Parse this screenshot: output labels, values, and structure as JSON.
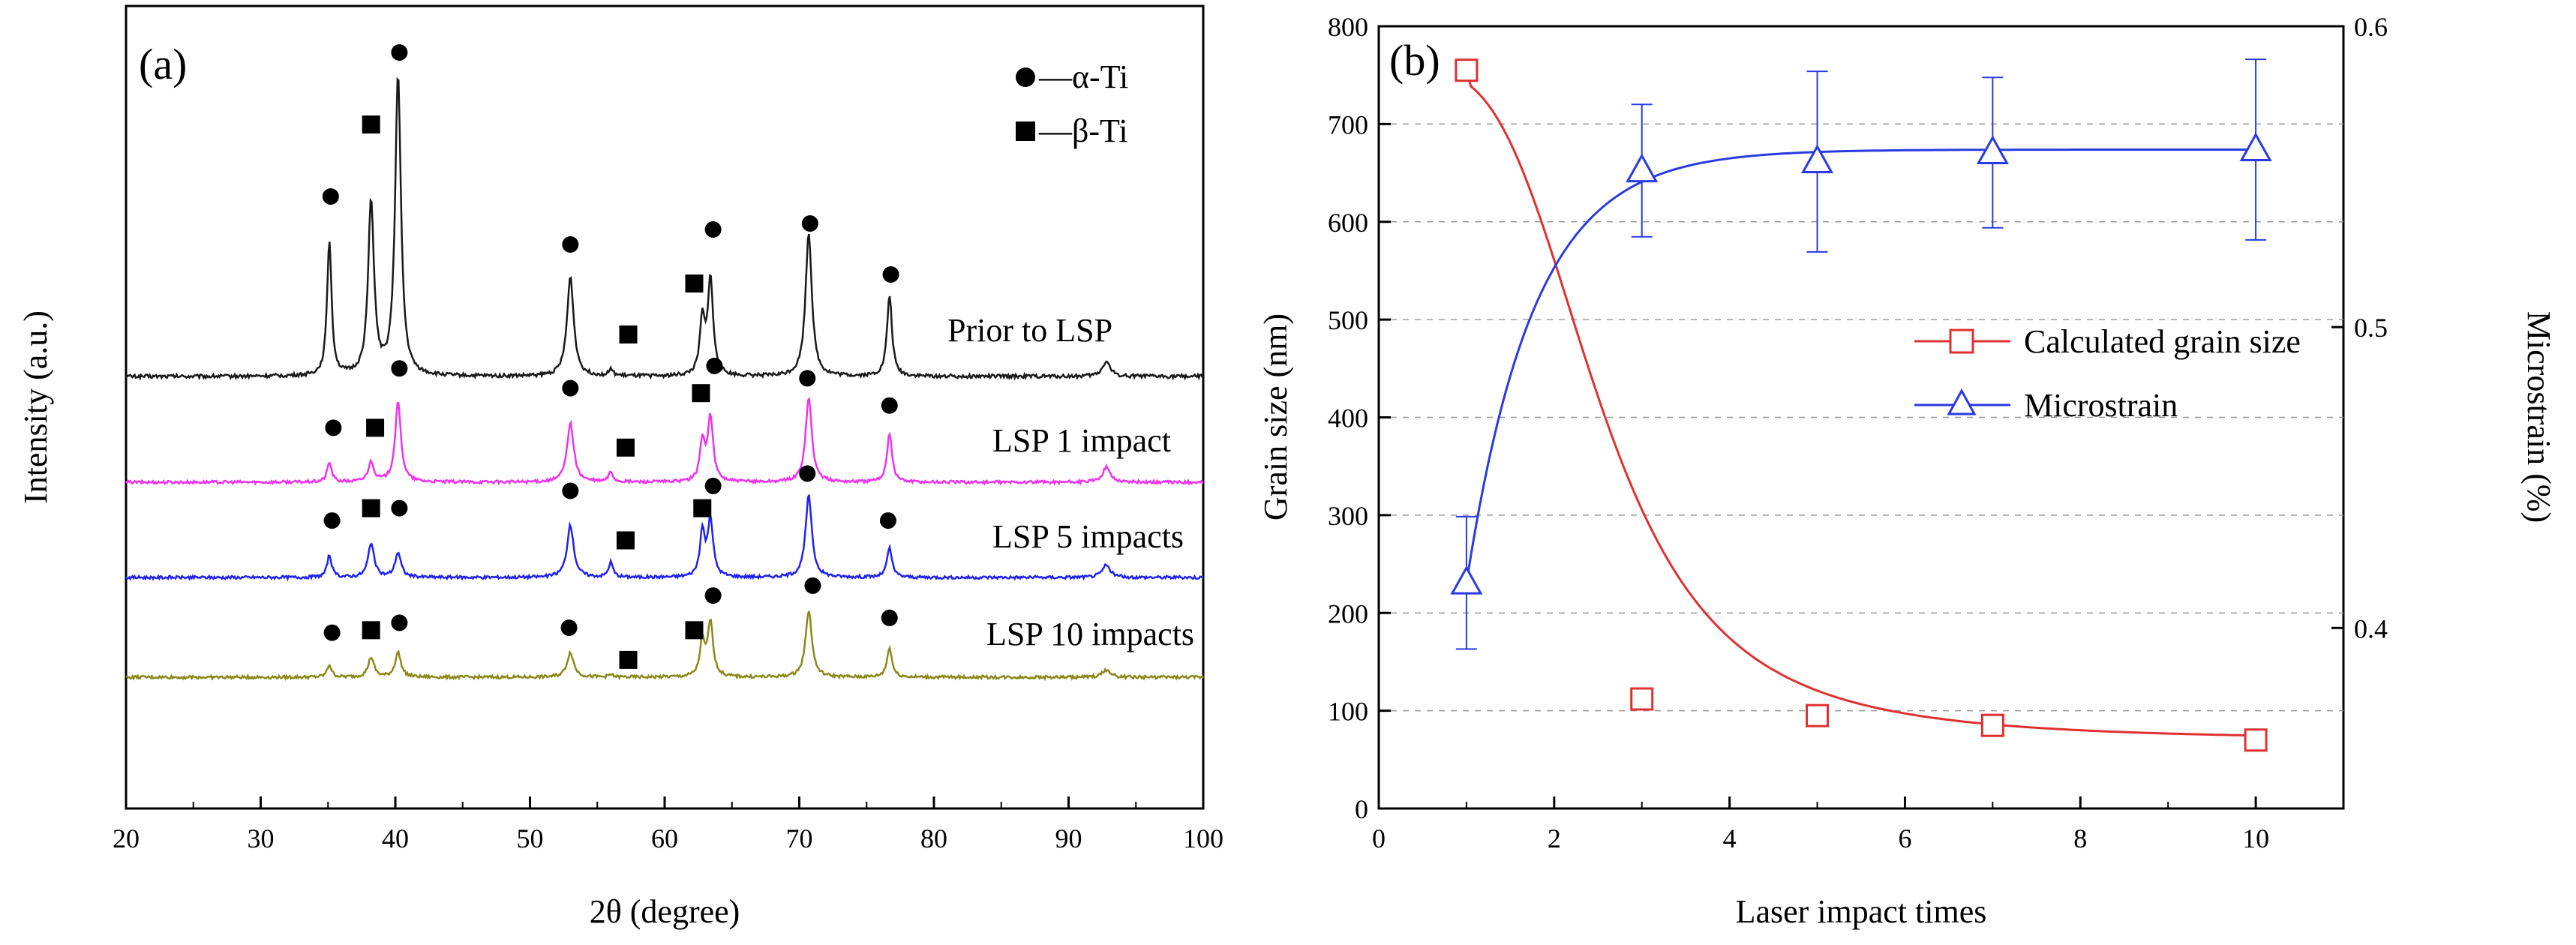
{
  "chart_data": [
    {
      "type": "line",
      "panel_label": "(a)",
      "xlabel": "2θ (degree)",
      "ylabel": "Intensity (a.u.)",
      "xlim": [
        20,
        100
      ],
      "xticks": [
        "20",
        "30",
        "40",
        "50",
        "60",
        "70",
        "80",
        "90",
        "100"
      ],
      "legend": [
        {
          "marker": "circle",
          "label": "—α-Ti"
        },
        {
          "marker": "square",
          "label": "—β-Ti"
        }
      ],
      "peaks": [
        35.1,
        38.2,
        40.2,
        53.0,
        56.0,
        62.8,
        63.4,
        70.7,
        76.7,
        92.8
      ],
      "series": [
        {
          "name": "Prior to LSP",
          "color": "#1a1a1a",
          "heights": [
            0.45,
            0.58,
            1.0,
            0.33,
            0.02,
            0.18,
            0.32,
            0.48,
            0.27,
            0.05
          ],
          "markers": [
            {
              "type": "circle",
              "x": 35.2,
              "h": 0.6
            },
            {
              "type": "square",
              "x": 38.2,
              "h": 0.84
            },
            {
              "type": "circle",
              "x": 40.3,
              "h": 1.08
            },
            {
              "type": "circle",
              "x": 53.0,
              "h": 0.44
            },
            {
              "type": "square",
              "x": 57.3,
              "h": 0.14
            },
            {
              "type": "square",
              "x": 62.2,
              "h": 0.31
            },
            {
              "type": "circle",
              "x": 63.6,
              "h": 0.49
            },
            {
              "type": "circle",
              "x": 70.8,
              "h": 0.51
            },
            {
              "type": "circle",
              "x": 76.8,
              "h": 0.34
            }
          ]
        },
        {
          "name": "LSP 1 impact",
          "color": "#ee33ee",
          "heights": [
            0.08,
            0.08,
            0.32,
            0.24,
            0.04,
            0.16,
            0.26,
            0.34,
            0.2,
            0.06
          ],
          "markers": [
            {
              "type": "circle",
              "x": 35.4,
              "h": 0.22
            },
            {
              "type": "square",
              "x": 38.5,
              "h": 0.22
            },
            {
              "type": "circle",
              "x": 40.3,
              "h": 0.46
            },
            {
              "type": "circle",
              "x": 53.0,
              "h": 0.38
            },
            {
              "type": "square",
              "x": 57.1,
              "h": 0.14
            },
            {
              "type": "square",
              "x": 62.7,
              "h": 0.36
            },
            {
              "type": "circle",
              "x": 63.7,
              "h": 0.47
            },
            {
              "type": "circle",
              "x": 70.6,
              "h": 0.42
            },
            {
              "type": "circle",
              "x": 76.7,
              "h": 0.31
            }
          ]
        },
        {
          "name": "LSP 5 impacts",
          "color": "#2222ee",
          "heights": [
            0.09,
            0.14,
            0.1,
            0.21,
            0.06,
            0.18,
            0.23,
            0.33,
            0.12,
            0.05
          ],
          "markers": [
            {
              "type": "circle",
              "x": 35.3,
              "h": 0.23
            },
            {
              "type": "square",
              "x": 38.2,
              "h": 0.28
            },
            {
              "type": "circle",
              "x": 40.3,
              "h": 0.28
            },
            {
              "type": "circle",
              "x": 53.0,
              "h": 0.35
            },
            {
              "type": "square",
              "x": 57.1,
              "h": 0.15
            },
            {
              "type": "square",
              "x": 62.8,
              "h": 0.28
            },
            {
              "type": "circle",
              "x": 63.6,
              "h": 0.37
            },
            {
              "type": "circle",
              "x": 70.6,
              "h": 0.42
            },
            {
              "type": "circle",
              "x": 76.6,
              "h": 0.23
            }
          ]
        },
        {
          "name": "LSP 10 impacts",
          "color": "#8a8a1a",
          "heights": [
            0.05,
            0.08,
            0.1,
            0.1,
            0.01,
            0.14,
            0.22,
            0.27,
            0.12,
            0.03
          ],
          "markers": [
            {
              "type": "circle",
              "x": 35.3,
              "h": 0.18
            },
            {
              "type": "square",
              "x": 38.2,
              "h": 0.19
            },
            {
              "type": "circle",
              "x": 40.3,
              "h": 0.22
            },
            {
              "type": "circle",
              "x": 52.9,
              "h": 0.2
            },
            {
              "type": "square",
              "x": 57.3,
              "h": 0.07
            },
            {
              "type": "square",
              "x": 62.2,
              "h": 0.19
            },
            {
              "type": "circle",
              "x": 63.6,
              "h": 0.33
            },
            {
              "type": "circle",
              "x": 71.0,
              "h": 0.37
            },
            {
              "type": "circle",
              "x": 76.7,
              "h": 0.24
            }
          ]
        }
      ]
    },
    {
      "type": "line",
      "panel_label": "(b)",
      "xlabel": "Laser impact times",
      "ylabel": "Grain size (nm)",
      "y2label": "Microstrain (%)",
      "xlim": [
        0,
        11
      ],
      "ylim": [
        0,
        800
      ],
      "y2lim": [
        0.34,
        0.6
      ],
      "xticks": [
        "0",
        "2",
        "4",
        "6",
        "8",
        "10"
      ],
      "yticks": [
        "0",
        "100",
        "200",
        "300",
        "400",
        "500",
        "600",
        "700",
        "800"
      ],
      "y2ticks": [
        "0.4",
        "0.5",
        "0.6"
      ],
      "legend": [
        {
          "name": "Calculated grain size",
          "color": "#e03030",
          "marker": "square"
        },
        {
          "name": "Microstrain",
          "color": "#2a3ae0",
          "marker": "triangle"
        }
      ],
      "series": [
        {
          "name": "Calculated grain size",
          "axis": "left",
          "color": "#e03030",
          "marker": "square",
          "x": [
            1,
            3,
            5,
            7,
            10
          ],
          "values": [
            755,
            112,
            95,
            85,
            70
          ]
        },
        {
          "name": "Microstrain",
          "axis": "right",
          "color": "#2a3ae0",
          "marker": "triangle",
          "x": [
            1,
            3,
            5,
            7,
            10
          ],
          "values": [
            0.415,
            0.552,
            0.555,
            0.558,
            0.559
          ],
          "error": [
            0.022,
            0.022,
            0.03,
            0.025,
            0.03
          ]
        }
      ]
    }
  ]
}
